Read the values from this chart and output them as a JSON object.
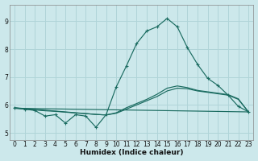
{
  "xlabel": "Humidex (Indice chaleur)",
  "xlim": [
    -0.5,
    23.5
  ],
  "ylim": [
    4.75,
    9.6
  ],
  "yticks": [
    5,
    6,
    7,
    8,
    9
  ],
  "xticks": [
    0,
    1,
    2,
    3,
    4,
    5,
    6,
    7,
    8,
    9,
    10,
    11,
    12,
    13,
    14,
    15,
    16,
    17,
    18,
    19,
    20,
    21,
    22,
    23
  ],
  "background_color": "#cce8eb",
  "grid_color": "#b0d4d8",
  "line_color": "#1a6b60",
  "series_jagged": {
    "x": [
      0,
      1,
      2,
      3,
      4,
      5,
      6,
      7,
      8,
      9,
      10,
      11,
      12,
      13,
      14,
      15,
      16,
      17,
      18,
      19,
      20,
      21,
      22,
      23
    ],
    "y": [
      5.9,
      5.85,
      5.8,
      5.6,
      5.65,
      5.35,
      5.65,
      5.6,
      5.2,
      5.65,
      6.65,
      7.4,
      8.2,
      8.65,
      8.8,
      9.1,
      8.8,
      8.05,
      7.45,
      6.95,
      6.7,
      6.35,
      5.95,
      5.75
    ]
  },
  "series_smooth1": {
    "x": [
      0,
      1,
      2,
      3,
      4,
      5,
      6,
      7,
      8,
      9,
      10,
      11,
      12,
      13,
      14,
      15,
      16,
      17,
      18,
      19,
      20,
      21,
      22,
      23
    ],
    "y": [
      5.88,
      5.85,
      5.82,
      5.79,
      5.77,
      5.74,
      5.71,
      5.69,
      5.66,
      5.64,
      5.7,
      5.85,
      6.0,
      6.15,
      6.3,
      6.5,
      6.6,
      6.58,
      6.5,
      6.45,
      6.4,
      6.35,
      6.2,
      5.75
    ]
  },
  "series_smooth2": {
    "x": [
      0,
      1,
      2,
      3,
      4,
      5,
      6,
      7,
      8,
      9,
      10,
      11,
      12,
      13,
      14,
      15,
      16,
      17,
      18,
      19,
      20,
      21,
      22,
      23
    ],
    "y": [
      5.9,
      5.87,
      5.84,
      5.81,
      5.78,
      5.75,
      5.72,
      5.69,
      5.66,
      5.64,
      5.72,
      5.9,
      6.05,
      6.2,
      6.38,
      6.6,
      6.68,
      6.62,
      6.52,
      6.47,
      6.42,
      6.37,
      6.22,
      5.75
    ]
  },
  "series_flat": {
    "x": [
      0,
      23
    ],
    "y": [
      5.88,
      5.75
    ]
  }
}
